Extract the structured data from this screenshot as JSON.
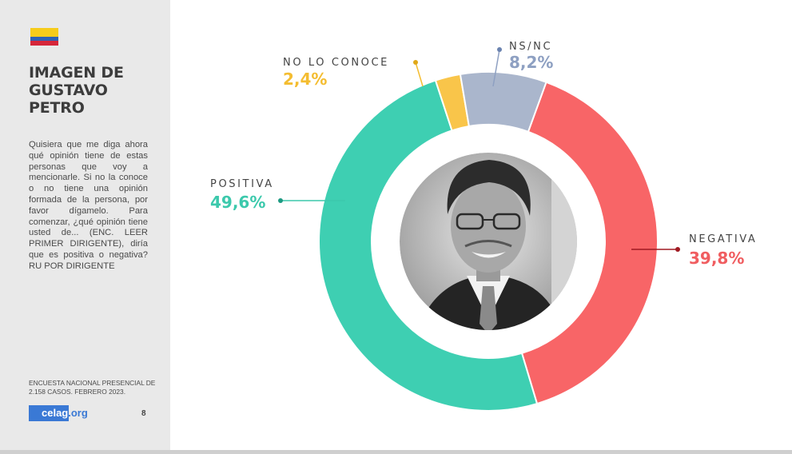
{
  "sidebar": {
    "title_lines": [
      "IMAGEN DE",
      "GUSTAVO",
      "PETRO"
    ],
    "description": "Quisiera que me diga ahora qué opinión tiene de estas personas que voy a mencionarle. Si no la conoce o no tiene una opinión formada de la persona, por favor dígamelo. Para comenzar, ¿qué opinión tiene usted de... (ENC. LEER PRIMER DIRIGENTE), diría que es positiva o negativa? RU POR DIRIGENTE",
    "footnote": "ENCUESTA NACIONAL PRESENCIAL DE 2.158 CASOS. FEBRERO 2023.",
    "logo_main": "celag",
    "logo_suffix": ".org",
    "page_number": "8",
    "flag_colors": [
      "#f6cc1b",
      "#2f63b5",
      "#d6263a"
    ]
  },
  "photo": {
    "icon": "portrait-photo-icon"
  },
  "chart_data": {
    "type": "pie",
    "subtype": "donut",
    "title": "",
    "categories": [
      "NEGATIVA",
      "POSITIVA",
      "NO LO CONOCE",
      "NS/NC"
    ],
    "values": [
      39.8,
      49.6,
      2.4,
      8.2
    ],
    "value_labels": [
      "39,8%",
      "49,6%",
      "2,4%",
      "8,2%"
    ],
    "colors": [
      "#f86567",
      "#3ecfb2",
      "#f9c54a",
      "#aab6cc"
    ],
    "label_value_colors": [
      "#f05d60",
      "#3cc9ac",
      "#f4bd31",
      "#8ea0c2"
    ],
    "dot_colors": [
      "#a01a22",
      "#1d9a82",
      "#e0a818",
      "#6b83b0"
    ],
    "start_angle_deg": 20
  }
}
